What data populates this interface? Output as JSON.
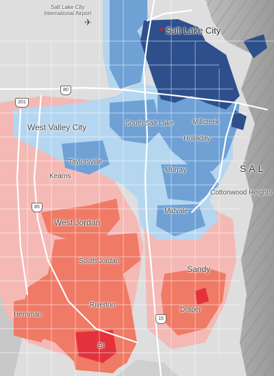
{
  "map": {
    "region": "Salt Lake Valley",
    "colors": {
      "basemap_gray": "#dcdcdc",
      "mountain_gray": "#a9a9a9",
      "roads": "#ffffff",
      "dark_blue": "#2d4f8c",
      "mid_blue": "#6fa1d5",
      "light_blue": "#b5d6ef",
      "light_pink": "#f4b9b5",
      "salmon": "#ef7a66",
      "red": "#e3323b"
    },
    "labels": {
      "airport": "Salt Lake City\nInternational Airport",
      "salt_lake_city": "Salt Lake City",
      "west_valley_city": "West Valley City",
      "south_salt_lake": "South Salt Lake",
      "millcreek": "Millcreek",
      "holladay": "Holladay",
      "taylorsville": "Taylorsville",
      "kearns": "Kearns",
      "murray": "Murray",
      "cottonwood_heights": "Cottonwood Heights",
      "sal": "SAL",
      "midvale": "Midvale",
      "west_jordan": "West Jordan",
      "south_jordan": "South Jordan",
      "sandy": "Sandy",
      "riverton": "Riverton",
      "herriman": "Herriman",
      "draper": "Draper",
      "bluffdale_abbrev": "Bl"
    },
    "shields": {
      "i80": "80",
      "i201": "201",
      "i85": "85",
      "i15": "15"
    },
    "icons": {
      "airport": "airplane-icon",
      "capital": "star-icon"
    }
  }
}
